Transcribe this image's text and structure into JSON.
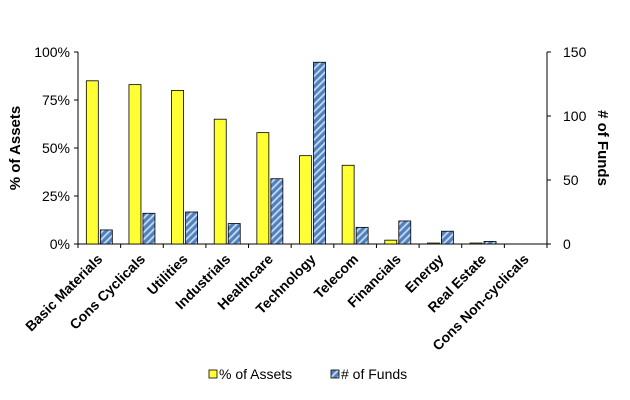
{
  "chart_data": {
    "type": "bar",
    "categories": [
      "Basic Materials",
      "Cons Cyclicals",
      "Utilities",
      "Industrials",
      "Healthcare",
      "Technology",
      "Telecom",
      "Financials",
      "Energy",
      "Real Estate",
      "Cons Non-cyclicals"
    ],
    "series": [
      {
        "name": "% of Assets",
        "axis": "left",
        "color": "#ffff33",
        "pattern": "solid",
        "values": [
          85,
          83,
          80,
          65,
          58,
          46,
          41,
          2,
          0.5,
          0.5,
          0
        ]
      },
      {
        "name": "# of Funds",
        "axis": "right",
        "color": "#4f81bd",
        "pattern": "diagonal-hatch",
        "values": [
          11,
          24,
          25,
          16,
          51,
          142,
          13,
          18,
          10,
          2,
          0
        ]
      }
    ],
    "ylabel_left": "% of Assets",
    "ylabel_right": "# of Funds",
    "ylim_left": [
      0,
      100
    ],
    "ylim_right": [
      0,
      150
    ],
    "yticks_left": [
      "0%",
      "25%",
      "50%",
      "75%",
      "100%"
    ],
    "yticks_right": [
      "0",
      "50",
      "100",
      "150"
    ],
    "grid": false,
    "legend_position": "bottom"
  }
}
